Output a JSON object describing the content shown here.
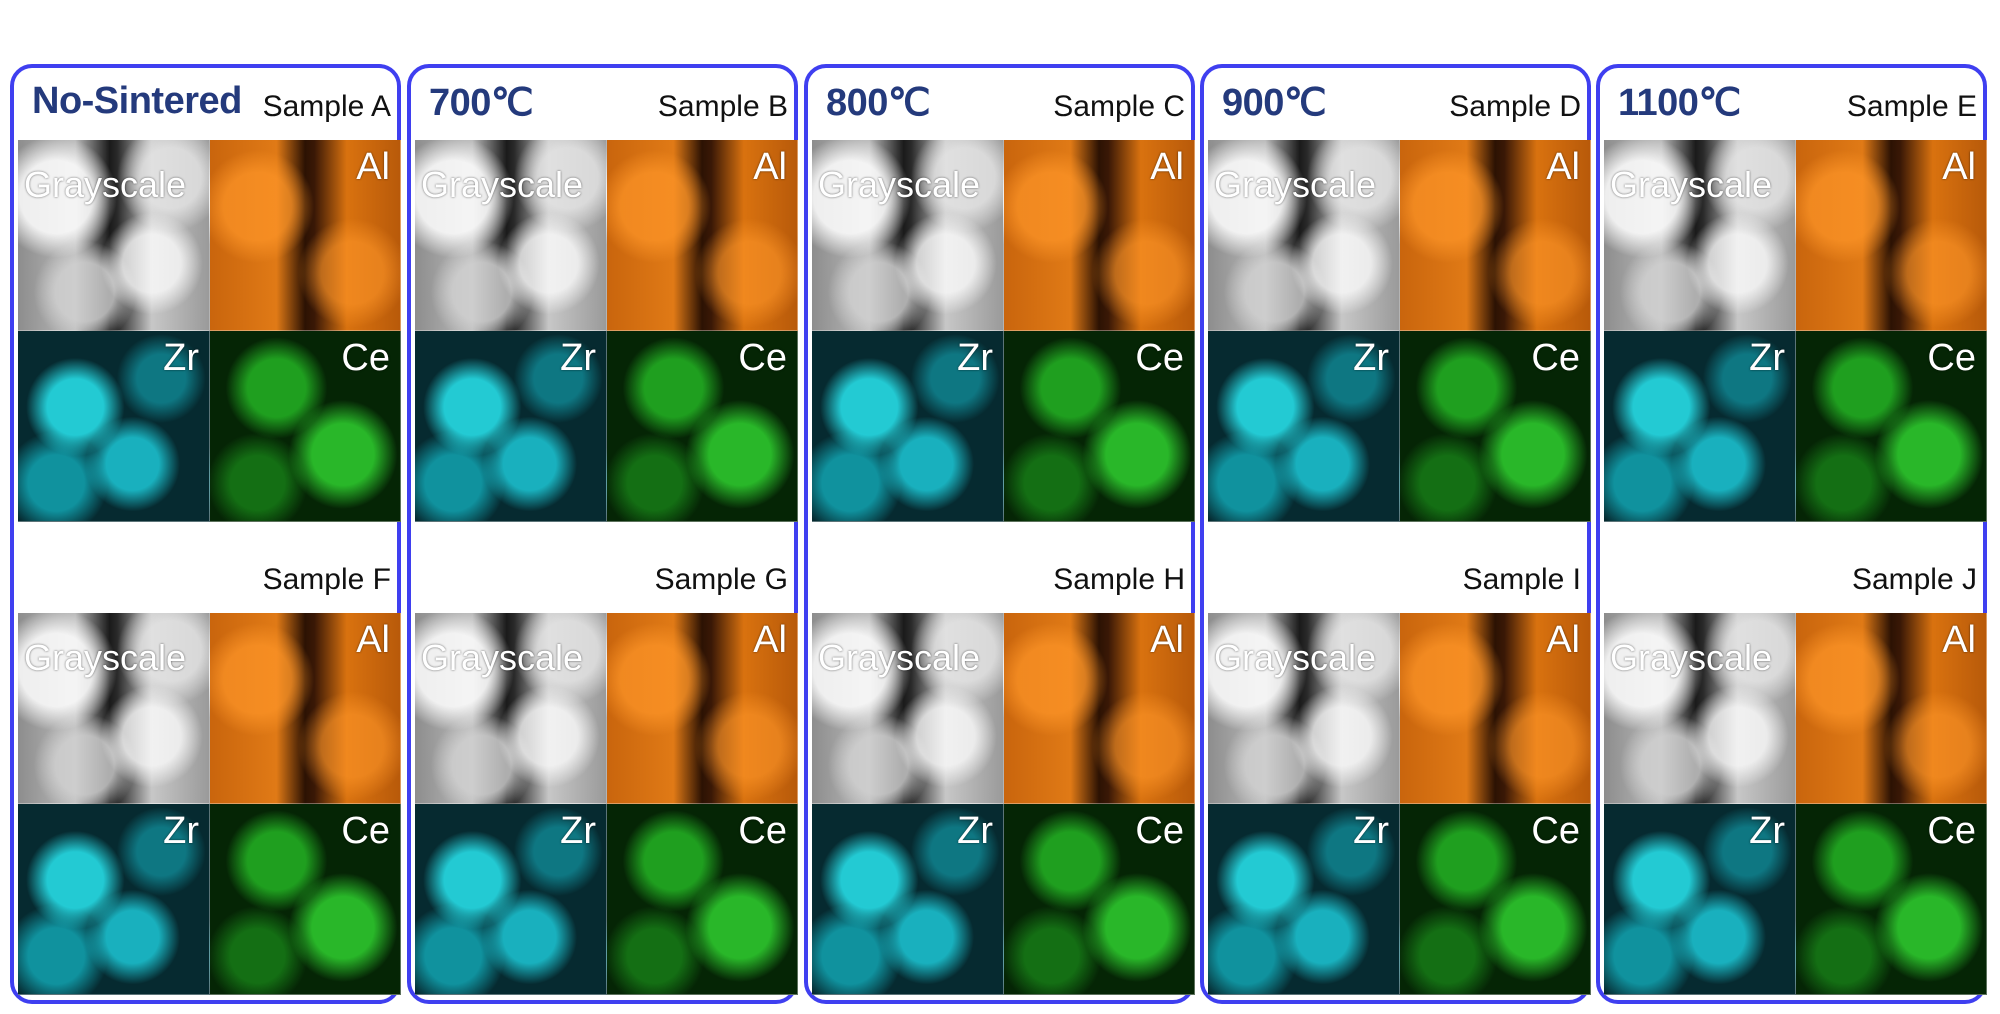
{
  "colors": {
    "frame": "#3f3ff0",
    "title": "#243a7c",
    "grayscale_tone": "#9a9a9a",
    "al_tone": "#e07a16",
    "zr_tone": "#20d8e6",
    "ce_tone": "#2ec82e"
  },
  "cell_labels": {
    "grayscale": "Grayscale",
    "al": "Al",
    "zr": "Zr",
    "ce": "Ce"
  },
  "columns": [
    {
      "title": "No-Sintered",
      "top_sample": "Sample A",
      "bottom_sample": "Sample F"
    },
    {
      "title": "700℃",
      "top_sample": "Sample B",
      "bottom_sample": "Sample G"
    },
    {
      "title": "800℃",
      "top_sample": "Sample C",
      "bottom_sample": "Sample H"
    },
    {
      "title": "900℃",
      "top_sample": "Sample D",
      "bottom_sample": "Sample I"
    },
    {
      "title": "1100℃",
      "top_sample": "Sample E",
      "bottom_sample": "Sample J"
    }
  ]
}
